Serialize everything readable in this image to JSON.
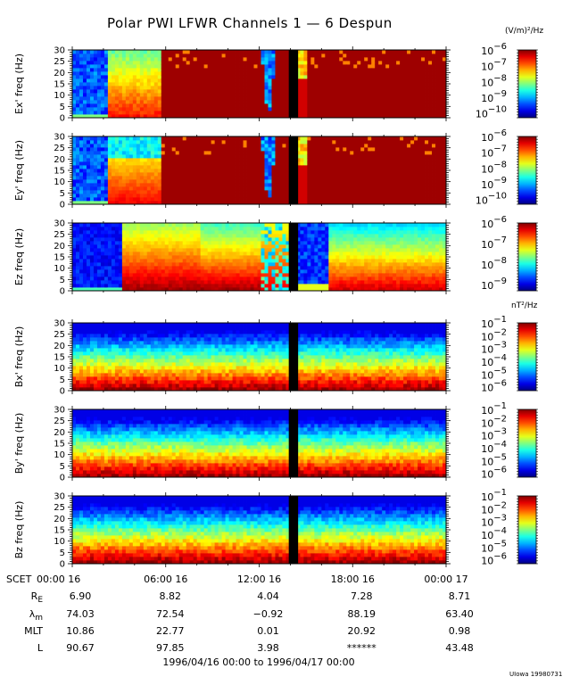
{
  "title": "Polar PWI LFWR Channels 1 — 6 Despun",
  "credit": "UIowa 19980731",
  "units": {
    "electric": "(V/m)²/Hz",
    "magnetic": "nT²/Hz"
  },
  "chart_data": {
    "type": "heatmap",
    "title": "Polar PWI LFWR Channels 1 — 6 Despun",
    "xlabel": "SCET",
    "x_ticks": [
      "00:00 16",
      "06:00 16",
      "12:00 16",
      "18:00 16",
      "00:00 17"
    ],
    "xlim_hours": [
      0,
      24
    ],
    "data_gap_hours": [
      13.9,
      14.5
    ],
    "panels": [
      {
        "id": "ex",
        "ylabel": "Ex' freq (Hz)",
        "ylim": [
          0,
          30
        ],
        "y_ticks": [
          0,
          5,
          10,
          15,
          20,
          25,
          30
        ],
        "colorbar": {
          "unit": "(V/m)²/Hz",
          "labels": [
            "-6",
            "-7",
            "-8",
            "-9",
            "-10"
          ],
          "range_exp": [
            -10.3,
            -6
          ]
        }
      },
      {
        "id": "ey",
        "ylabel": "Ey' freq (Hz)",
        "ylim": [
          0,
          30
        ],
        "y_ticks": [
          0,
          5,
          10,
          15,
          20,
          25,
          30
        ],
        "colorbar": {
          "unit": "(V/m)²/Hz",
          "labels": [
            "-6",
            "-7",
            "-8",
            "-9",
            "-10"
          ],
          "range_exp": [
            -10.3,
            -6
          ]
        }
      },
      {
        "id": "ez",
        "ylabel": "Ez freq (Hz)",
        "ylim": [
          0,
          30
        ],
        "y_ticks": [
          0,
          5,
          10,
          15,
          20,
          25,
          30
        ],
        "colorbar": {
          "unit": "(V/m)²/Hz",
          "labels": [
            "-6",
            "-7",
            "-8",
            "-9"
          ],
          "range_exp": [
            -9.3,
            -6
          ]
        }
      },
      {
        "id": "bx",
        "ylabel": "Bx' freq (Hz)",
        "ylim": [
          0,
          30
        ],
        "y_ticks": [
          0,
          5,
          10,
          15,
          20,
          25,
          30
        ],
        "colorbar": {
          "unit": "nT²/Hz",
          "labels": [
            "-1",
            "-2",
            "-3",
            "-4",
            "-5",
            "-6"
          ],
          "range_exp": [
            -6.3,
            -1
          ]
        }
      },
      {
        "id": "by",
        "ylabel": "By' freq (Hz)",
        "ylim": [
          0,
          30
        ],
        "y_ticks": [
          0,
          5,
          10,
          15,
          20,
          25,
          30
        ],
        "colorbar": {
          "unit": "nT²/Hz",
          "labels": [
            "-1",
            "-2",
            "-3",
            "-4",
            "-5",
            "-6"
          ],
          "range_exp": [
            -6.3,
            -1
          ]
        }
      },
      {
        "id": "bz",
        "ylabel": "Bz freq (Hz)",
        "ylim": [
          0,
          30
        ],
        "y_ticks": [
          0,
          5,
          10,
          15,
          20,
          25,
          30
        ],
        "colorbar": {
          "unit": "nT²/Hz",
          "labels": [
            "-1",
            "-2",
            "-3",
            "-4",
            "-5",
            "-6"
          ],
          "range_exp": [
            -6.3,
            -1
          ]
        }
      }
    ],
    "ephemeris": {
      "scet_label": "SCET",
      "rows": [
        {
          "label": "R",
          "sub": "E",
          "values": [
            "6.90",
            "8.82",
            "4.04",
            "7.28",
            "8.71"
          ]
        },
        {
          "label": "λ",
          "sub": "m",
          "values": [
            "74.03",
            "72.54",
            "−0.92",
            "88.19",
            "63.40"
          ]
        },
        {
          "label": "MLT",
          "sub": "",
          "values": [
            "10.86",
            "22.77",
            "0.01",
            "20.92",
            "0.98"
          ]
        },
        {
          "label": "L",
          "sub": "",
          "values": [
            "90.67",
            "97.85",
            "3.98",
            "******",
            "43.48"
          ]
        }
      ]
    },
    "date_range": "1996/04/16 00:00 to 1996/04/17 00:00",
    "colorbar_base": "10"
  }
}
